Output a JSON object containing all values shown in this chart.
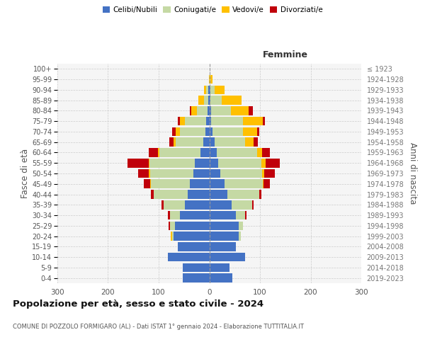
{
  "age_groups": [
    "0-4",
    "5-9",
    "10-14",
    "15-19",
    "20-24",
    "25-29",
    "30-34",
    "35-39",
    "40-44",
    "45-49",
    "50-54",
    "55-59",
    "60-64",
    "65-69",
    "70-74",
    "75-79",
    "80-84",
    "85-89",
    "90-94",
    "95-99",
    "100+"
  ],
  "birth_years": [
    "2019-2023",
    "2014-2018",
    "2009-2013",
    "2004-2008",
    "1999-2003",
    "1994-1998",
    "1989-1993",
    "1984-1988",
    "1979-1983",
    "1974-1978",
    "1969-1973",
    "1964-1968",
    "1959-1963",
    "1954-1958",
    "1949-1953",
    "1944-1948",
    "1939-1943",
    "1934-1938",
    "1929-1933",
    "1924-1928",
    "≤ 1923"
  ],
  "males": {
    "celibi": [
      52,
      52,
      82,
      62,
      70,
      68,
      58,
      48,
      42,
      38,
      32,
      28,
      18,
      12,
      8,
      6,
      4,
      2,
      2,
      0,
      0
    ],
    "coniugati": [
      0,
      0,
      0,
      0,
      4,
      10,
      20,
      42,
      68,
      78,
      85,
      90,
      80,
      55,
      50,
      42,
      20,
      8,
      4,
      0,
      0
    ],
    "vedovi": [
      0,
      0,
      0,
      0,
      2,
      0,
      0,
      0,
      0,
      1,
      2,
      2,
      3,
      4,
      8,
      10,
      12,
      12,
      4,
      1,
      0
    ],
    "divorziati": [
      0,
      0,
      0,
      0,
      0,
      2,
      4,
      5,
      5,
      12,
      22,
      42,
      18,
      8,
      8,
      4,
      2,
      0,
      0,
      0,
      0
    ]
  },
  "females": {
    "nubili": [
      46,
      40,
      70,
      52,
      58,
      58,
      52,
      44,
      36,
      30,
      22,
      18,
      14,
      10,
      6,
      4,
      3,
      2,
      2,
      0,
      0
    ],
    "coniugate": [
      0,
      0,
      0,
      0,
      4,
      8,
      18,
      40,
      62,
      75,
      82,
      85,
      80,
      60,
      60,
      62,
      40,
      22,
      8,
      2,
      0
    ],
    "vedove": [
      0,
      0,
      0,
      0,
      0,
      0,
      0,
      0,
      0,
      2,
      4,
      8,
      10,
      18,
      28,
      40,
      35,
      40,
      20,
      4,
      0
    ],
    "divorziate": [
      0,
      0,
      0,
      0,
      0,
      0,
      4,
      4,
      5,
      12,
      22,
      28,
      15,
      8,
      4,
      4,
      8,
      0,
      0,
      0,
      0
    ]
  },
  "colors": {
    "celibi_nubili": "#4472c4",
    "coniugati": "#c5d9a4",
    "vedovi": "#ffc000",
    "divorziati": "#c0000b"
  },
  "xlim": 300,
  "title": "Popolazione per età, sesso e stato civile - 2024",
  "subtitle": "COMUNE DI POZZOLO FORMIGARO (AL) - Dati ISTAT 1° gennaio 2024 - Elaborazione TUTTITALIA.IT",
  "ylabel_left": "Fasce di età",
  "ylabel_right": "Anni di nascita",
  "xlabel_right": "Femmine"
}
